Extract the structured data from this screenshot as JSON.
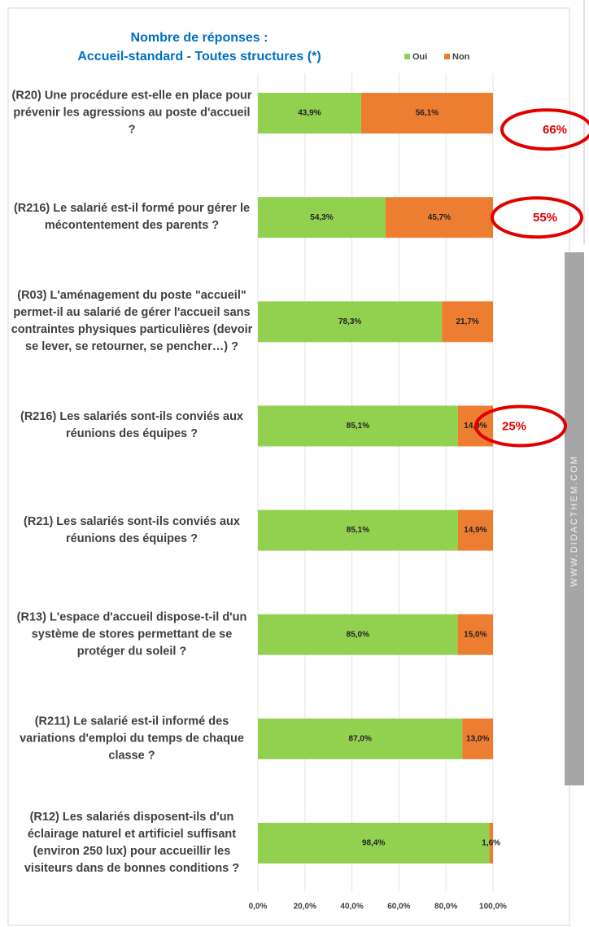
{
  "chart_data": {
    "type": "stacked_barh",
    "title": "Nombre de réponses :",
    "subtitle": "Accueil-standard - Toutes structures (*)",
    "categories": [
      "(R20) Une procédure est-elle en place pour prévenir les agressions au poste d'accueil ?",
      "(R216) Le salarié est-il formé pour gérer le mécontentement des parents ?",
      "(R03) L'aménagement du poste \"accueil\" permet-il au salarié de gérer l'accueil sans contraintes physiques particulières (devoir se lever, se retourner, se pencher…) ?",
      "(R216) Les salariés sont-ils conviés aux réunions des équipes ?",
      "(R21) Les salariés sont-ils conviés aux réunions des équipes ?",
      "(R13) L'espace d'accueil dispose-t-il d'un système de stores permettant de se protéger du soleil ?",
      "(R211) Le salarié est-il informé des variations d'emploi du temps de chaque classe ?",
      "(R12) Les salariés disposent-ils d'un éclairage naturel et artificiel suffisant (environ 250 lux) pour accueillir les visiteurs dans de bonnes conditions ?"
    ],
    "series": [
      {
        "name": "Oui",
        "color": "#92d050",
        "values": [
          43.9,
          54.3,
          78.3,
          85.1,
          85.1,
          85.0,
          87.0,
          98.4
        ],
        "value_labels": [
          "43,9%",
          "54,3%",
          "78,3%",
          "85,1%",
          "85,1%",
          "85,0%",
          "87,0%",
          "98,4%"
        ]
      },
      {
        "name": "Non",
        "color": "#ed7d31",
        "values": [
          56.1,
          45.7,
          21.7,
          14.9,
          14.9,
          15.0,
          13.0,
          1.6
        ],
        "value_labels": [
          "56,1%",
          "45,7%",
          "21,7%",
          "14,9%",
          "14,9%",
          "15,0%",
          "13,0%",
          "1,6%"
        ]
      }
    ],
    "xlim": [
      0,
      100
    ],
    "xticks": [
      {
        "value": 0,
        "label": "0,0%"
      },
      {
        "value": 20,
        "label": "20,0%"
      },
      {
        "value": 40,
        "label": "40,0%"
      },
      {
        "value": 60,
        "label": "60,0%"
      },
      {
        "value": 80,
        "label": "80,0%"
      },
      {
        "value": 100,
        "label": "100,0%"
      }
    ],
    "grid": true,
    "legend": "top-right",
    "annotations": [
      {
        "text": "66%",
        "row": 0
      },
      {
        "text": "55%",
        "row": 1
      },
      {
        "text": "25%",
        "row": 3
      }
    ]
  },
  "sidebar": {
    "text": "WWW.DIDACTHEM.COM"
  }
}
